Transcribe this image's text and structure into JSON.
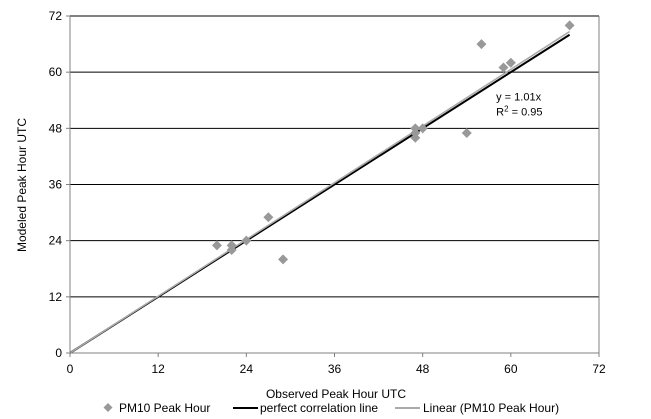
{
  "chart_data": {
    "type": "scatter",
    "title": "",
    "xlabel": "Observed Peak Hour UTC",
    "ylabel": "Modeled Peak Hour UTC",
    "xlim": [
      0,
      72
    ],
    "ylim": [
      0,
      72
    ],
    "xticks": [
      0,
      12,
      24,
      36,
      48,
      60,
      72
    ],
    "yticks": [
      0,
      12,
      24,
      36,
      48,
      60,
      72
    ],
    "grid": "horizontal",
    "legend_position": "bottom",
    "series": [
      {
        "name": "PM10 Peak Hour",
        "kind": "scatter",
        "marker": "diamond",
        "color": "#999999",
        "points": [
          {
            "x": 20,
            "y": 23
          },
          {
            "x": 22,
            "y": 23
          },
          {
            "x": 22,
            "y": 22
          },
          {
            "x": 24,
            "y": 24
          },
          {
            "x": 27,
            "y": 29
          },
          {
            "x": 29,
            "y": 20
          },
          {
            "x": 47,
            "y": 46
          },
          {
            "x": 47,
            "y": 47
          },
          {
            "x": 47,
            "y": 48
          },
          {
            "x": 48,
            "y": 48
          },
          {
            "x": 54,
            "y": 47
          },
          {
            "x": 56,
            "y": 66
          },
          {
            "x": 59,
            "y": 61
          },
          {
            "x": 60,
            "y": 62
          },
          {
            "x": 68,
            "y": 70
          }
        ]
      },
      {
        "name": "perfect correlation line",
        "kind": "line",
        "color": "#000000",
        "points": [
          {
            "x": 0,
            "y": 0
          },
          {
            "x": 68,
            "y": 68
          }
        ]
      },
      {
        "name": "Linear (PM10 Peak Hour)",
        "kind": "line",
        "color": "#aaaaaa",
        "points": [
          {
            "x": 0,
            "y": 0
          },
          {
            "x": 68,
            "y": 68.68
          }
        ]
      }
    ],
    "annotations": {
      "equation": "y = 1.01x",
      "r2_prefix": "R",
      "r2_superscript": "2",
      "r2_suffix": " = 0.95",
      "anchor": {
        "x": 58,
        "y": 54
      }
    }
  }
}
